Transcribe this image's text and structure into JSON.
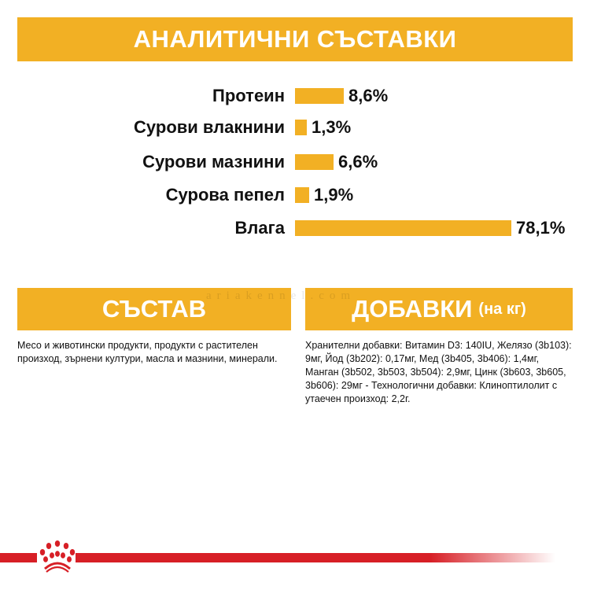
{
  "title": "АНАЛИТИЧНИ СЪСТАВКИ",
  "analytics": [
    {
      "label": "Протеин",
      "value": 8.6,
      "display": "8,6%"
    },
    {
      "label": "Сурови влакнини",
      "value": 1.3,
      "display": "1,3%"
    },
    {
      "label": "Сурови мазнини",
      "value": 6.6,
      "display": "6,6%"
    },
    {
      "label": "Сурова пепел",
      "value": 1.9,
      "display": "1,9%"
    },
    {
      "label": "Влага",
      "value": 78.1,
      "display": "78,1%"
    }
  ],
  "composition": {
    "heading": "СЪСТАВ",
    "text": "Месо и животински продукти, продукти с растителен произход, зърнени култури, масла и мазнини, минерали."
  },
  "additives": {
    "heading": "ДОБАВКИ",
    "heading_suffix": "(на кг)",
    "text": "Хранителни добавки: Витамин D3: 140IU, Желязо (3b103): 9мг, Йод (3b202): 0,17мг, Мед (3b405, 3b406): 1,4мг, Манган (3b502, 3b503, 3b504): 2,9мг, Цинк (3b603, 3b605, 3b606): 29мг - Технологични добавки: Клиноптилолит с утаечен произход: 2,2г."
  },
  "watermark": "ariakennel.com",
  "colors": {
    "accent": "#F2B024",
    "brand_red": "#D71F26"
  },
  "logo": "royal-canin-crown-logo"
}
